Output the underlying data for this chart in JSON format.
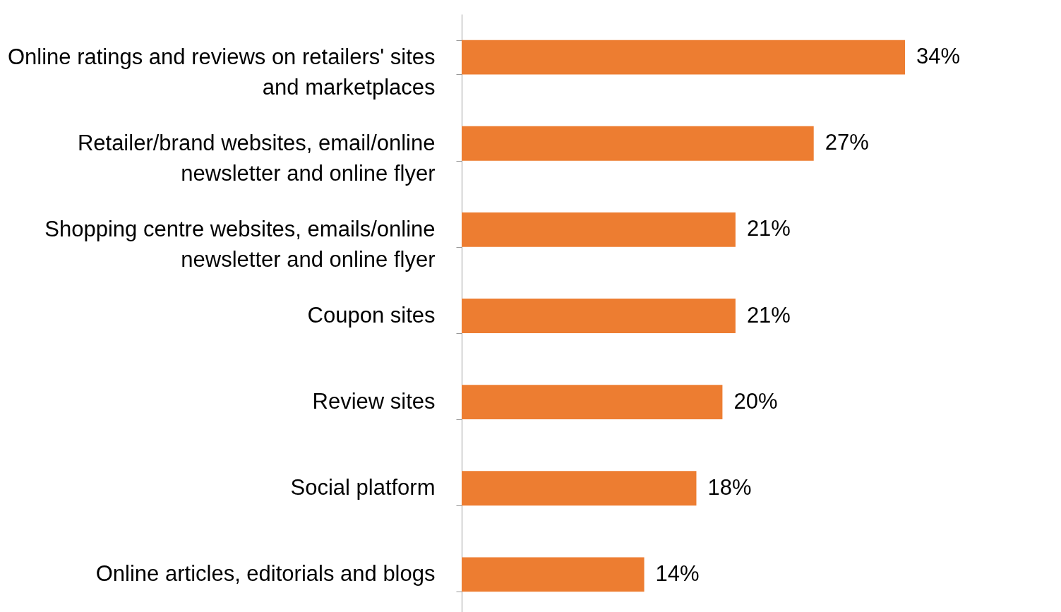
{
  "chart_data": {
    "type": "bar",
    "orientation": "horizontal",
    "categories": [
      "Online ratings and reviews on retailers' sites and marketplaces",
      "Retailer/brand websites, email/online newsletter and online flyer",
      "Shopping centre websites, emails/online newsletter and online flyer",
      "Coupon sites",
      "Review sites",
      "Social platform",
      "Online articles, editorials and blogs"
    ],
    "values": [
      34,
      27,
      21,
      21,
      20,
      18,
      14
    ],
    "value_labels": [
      "34%",
      "27%",
      "21%",
      "21%",
      "20%",
      "18%",
      "14%"
    ],
    "color": "#ed7d31"
  }
}
